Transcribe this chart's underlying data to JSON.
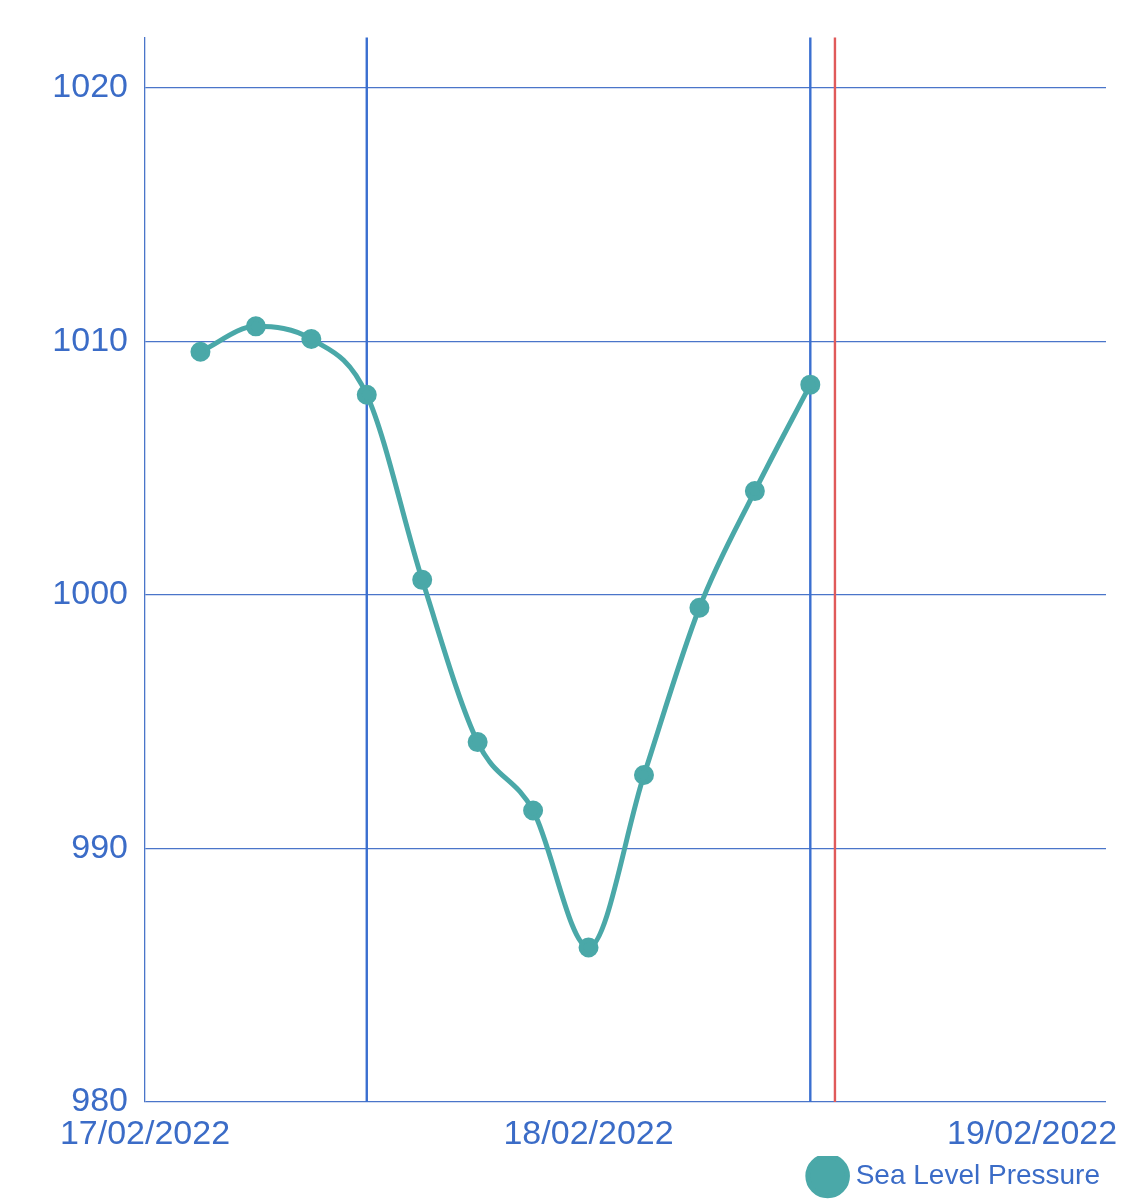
{
  "chart_data": {
    "type": "line",
    "x": [
      "2022-02-17T15:00",
      "2022-02-17T18:00",
      "2022-02-17T21:00",
      "2022-02-18T00:00",
      "2022-02-18T03:00",
      "2022-02-18T06:00",
      "2022-02-18T09:00",
      "2022-02-18T12:00",
      "2022-02-18T15:00",
      "2022-02-18T18:00",
      "2022-02-18T21:00",
      "2022-02-19T00:00"
    ],
    "series": [
      {
        "name": "Sea Level Pressure",
        "color": "#4aa8a8",
        "values": [
          1009.6,
          1010.6,
          1010.1,
          1007.9,
          1000.6,
          994.2,
          991.5,
          986.1,
          992.9,
          999.5,
          1004.1,
          1008.3
        ]
      }
    ],
    "xlim": [
      "2022-02-17T12:00",
      "2022-02-19T16:00"
    ],
    "xticks": [
      {
        "value": "2022-02-17T12:00",
        "label": "17/02/2022"
      },
      {
        "value": "2022-02-18T12:00",
        "label": "18/02/2022"
      },
      {
        "value": "2022-02-19T12:00",
        "label": "19/02/2022"
      }
    ],
    "ylim": [
      980,
      1022
    ],
    "yticks": [
      980,
      990,
      1000,
      1010,
      1020
    ],
    "grid": "y",
    "legend": "bottom right",
    "marker": "circle",
    "line_style": "solid",
    "ref_lines": [
      {
        "axis": "x",
        "value": "2022-02-18T00:00",
        "color": "#3a6fd0"
      },
      {
        "axis": "x",
        "value": "2022-02-19T00:00",
        "color": "#3a6fd0"
      },
      {
        "axis": "x",
        "value": "2022-02-19T01:20",
        "color": "#e05a5a"
      }
    ]
  }
}
